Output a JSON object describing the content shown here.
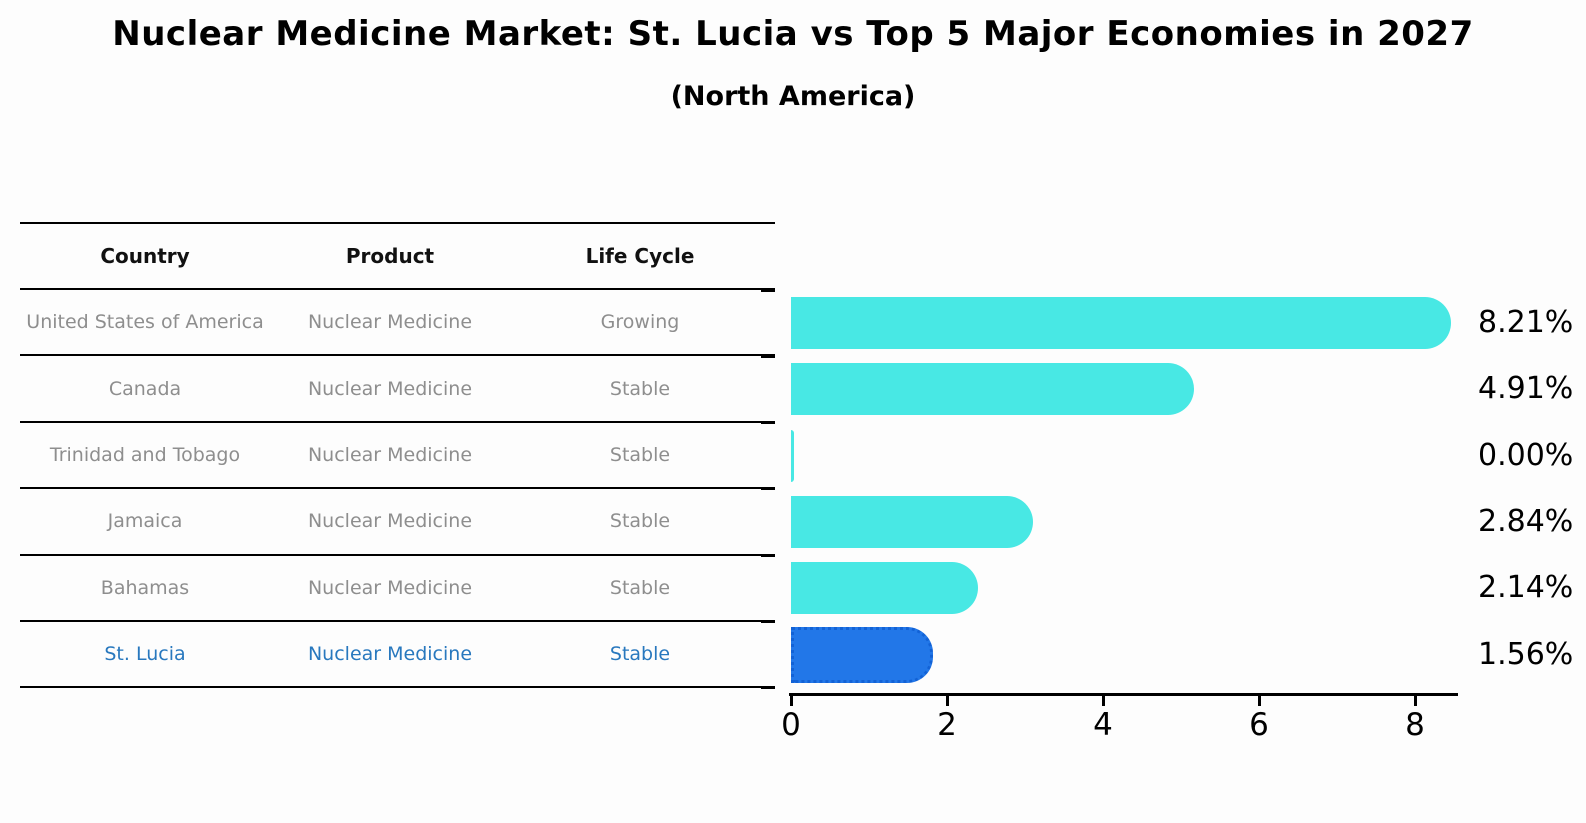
{
  "chart_data": {
    "type": "bar",
    "orientation": "horizontal",
    "title": "Nuclear Medicine Market: St. Lucia vs Top 5 Major Economies in 2027",
    "subtitle": "(North America)",
    "categories": [
      "United States of America",
      "Canada",
      "Trinidad and Tobago",
      "Jamaica",
      "Bahamas",
      "St. Lucia"
    ],
    "values": [
      8.21,
      4.91,
      0.0,
      2.84,
      2.14,
      1.56
    ],
    "value_labels": [
      "8.21%",
      "4.91%",
      "0.00%",
      "2.84%",
      "2.14%",
      "1.56%"
    ],
    "unit": "%",
    "xticks": [
      "0",
      "2",
      "4",
      "6",
      "8"
    ],
    "xlim": [
      0,
      8.6
    ],
    "grid": false,
    "legend": false,
    "highlight_index": 5,
    "bar_color": "#48e8e4",
    "highlight_bar_color": "#2277e8",
    "highlight_border_color": "#1262d6"
  },
  "table": {
    "headers": [
      "Country",
      "Product",
      "Life Cycle"
    ],
    "rows": [
      {
        "country": "United States of America",
        "product": "Nuclear Medicine",
        "life_cycle": "Growing",
        "highlighted": false
      },
      {
        "country": "Canada",
        "product": "Nuclear Medicine",
        "life_cycle": "Stable",
        "highlighted": false
      },
      {
        "country": "Trinidad and Tobago",
        "product": "Nuclear Medicine",
        "life_cycle": "Stable",
        "highlighted": false
      },
      {
        "country": "Jamaica",
        "product": "Nuclear Medicine",
        "life_cycle": "Stable",
        "highlighted": false
      },
      {
        "country": "Bahamas",
        "product": "Nuclear Medicine",
        "life_cycle": "Stable",
        "highlighted": false
      },
      {
        "country": "St. Lucia",
        "product": "Nuclear Medicine",
        "life_cycle": "Stable",
        "highlighted": true
      }
    ]
  },
  "colors": {
    "background": "#fdfdfd",
    "table_text": "#8e8e8e",
    "header_text": "#111111",
    "highlight_text": "#2878be",
    "axis": "#000000"
  }
}
